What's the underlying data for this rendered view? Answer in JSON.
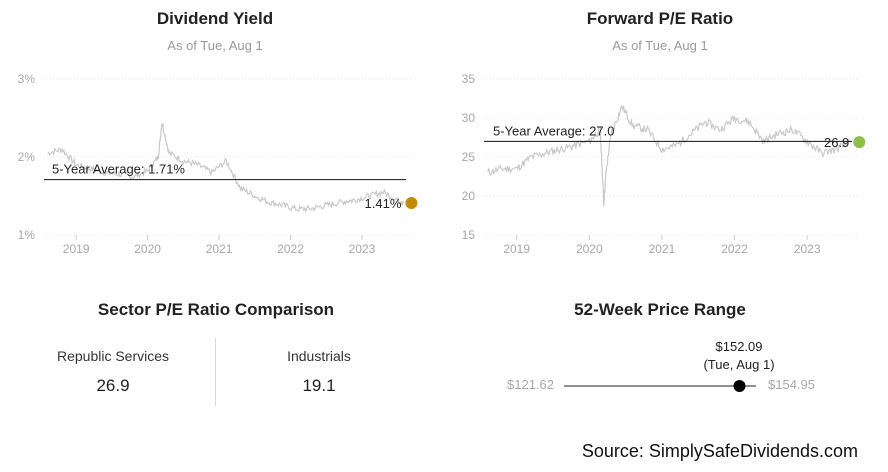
{
  "charts": {
    "dividend_yield": {
      "title": "Dividend Yield",
      "subtitle": "As of Tue, Aug 1",
      "y_ticks": [
        "3%",
        "2%",
        "1%"
      ],
      "x_ticks": [
        "2019",
        "2020",
        "2021",
        "2022",
        "2023"
      ],
      "avg_label": "5-Year Average: 1.71%",
      "current_label": "1.41%",
      "accent_color": "#c08a0b"
    },
    "forward_pe": {
      "title": "Forward P/E Ratio",
      "subtitle": "As of Tue, Aug 1",
      "y_ticks": [
        "35",
        "30",
        "25",
        "20",
        "15"
      ],
      "x_ticks": [
        "2019",
        "2020",
        "2021",
        "2022",
        "2023"
      ],
      "avg_label": "5-Year Average: 27.0",
      "current_label": "26.9",
      "accent_color": "#8dc04a"
    }
  },
  "chart_data": [
    {
      "type": "line",
      "title": "Dividend Yield",
      "subtitle": "As of Tue, Aug 1",
      "ylim": [
        1,
        3
      ],
      "y_unit": "%",
      "x_ticks": [
        "2019",
        "2020",
        "2021",
        "2022",
        "2023"
      ],
      "x": [
        2018.6,
        2018.8,
        2019.0,
        2019.2,
        2019.4,
        2019.6,
        2019.8,
        2020.0,
        2020.15,
        2020.2,
        2020.3,
        2020.5,
        2020.7,
        2020.9,
        2021.1,
        2021.3,
        2021.5,
        2021.7,
        2021.9,
        2022.1,
        2022.3,
        2022.5,
        2022.7,
        2022.9,
        2023.1,
        2023.3,
        2023.5,
        2023.58
      ],
      "series": [
        {
          "values": [
            2.05,
            2.1,
            1.9,
            1.85,
            1.8,
            1.78,
            1.75,
            1.82,
            2.0,
            2.45,
            2.05,
            1.95,
            1.9,
            1.8,
            1.95,
            1.6,
            1.5,
            1.42,
            1.38,
            1.33,
            1.34,
            1.38,
            1.42,
            1.45,
            1.5,
            1.55,
            1.45,
            1.41
          ]
        }
      ],
      "average": 1.71,
      "current": 1.41
    },
    {
      "type": "line",
      "title": "Forward P/E Ratio",
      "subtitle": "As of Tue, Aug 1",
      "ylim": [
        15,
        35
      ],
      "x_ticks": [
        "2019",
        "2020",
        "2021",
        "2022",
        "2023"
      ],
      "x": [
        2018.6,
        2018.8,
        2019.0,
        2019.2,
        2019.4,
        2019.6,
        2019.8,
        2020.0,
        2020.15,
        2020.2,
        2020.23,
        2020.3,
        2020.45,
        2020.6,
        2020.8,
        2021.0,
        2021.2,
        2021.4,
        2021.6,
        2021.8,
        2022.0,
        2022.2,
        2022.4,
        2022.6,
        2022.8,
        2023.0,
        2023.2,
        2023.4,
        2023.58
      ],
      "series": [
        {
          "values": [
            23.0,
            23.5,
            23.5,
            25.0,
            25.5,
            26.0,
            26.5,
            27.0,
            28.5,
            19.0,
            23.0,
            28.0,
            31.5,
            29.0,
            28.5,
            26.0,
            26.5,
            28.0,
            29.5,
            28.5,
            30.0,
            29.5,
            27.0,
            28.0,
            28.5,
            27.0,
            25.5,
            26.0,
            26.9
          ]
        }
      ],
      "average": 27.0,
      "current": 26.9
    }
  ],
  "sector": {
    "title": "Sector P/E Ratio Comparison",
    "items": [
      {
        "label": "Republic Services",
        "value": "26.9"
      },
      {
        "label": "Industrials",
        "value": "19.1"
      }
    ]
  },
  "price_range": {
    "title": "52-Week Price Range",
    "current_price": "$152.09",
    "current_date": "(Tue, Aug 1)",
    "low": "$121.62",
    "high": "$154.95",
    "low_value": 121.62,
    "high_value": 154.95,
    "current_value": 152.09
  },
  "source": "Source: SimplySafeDividends.com"
}
